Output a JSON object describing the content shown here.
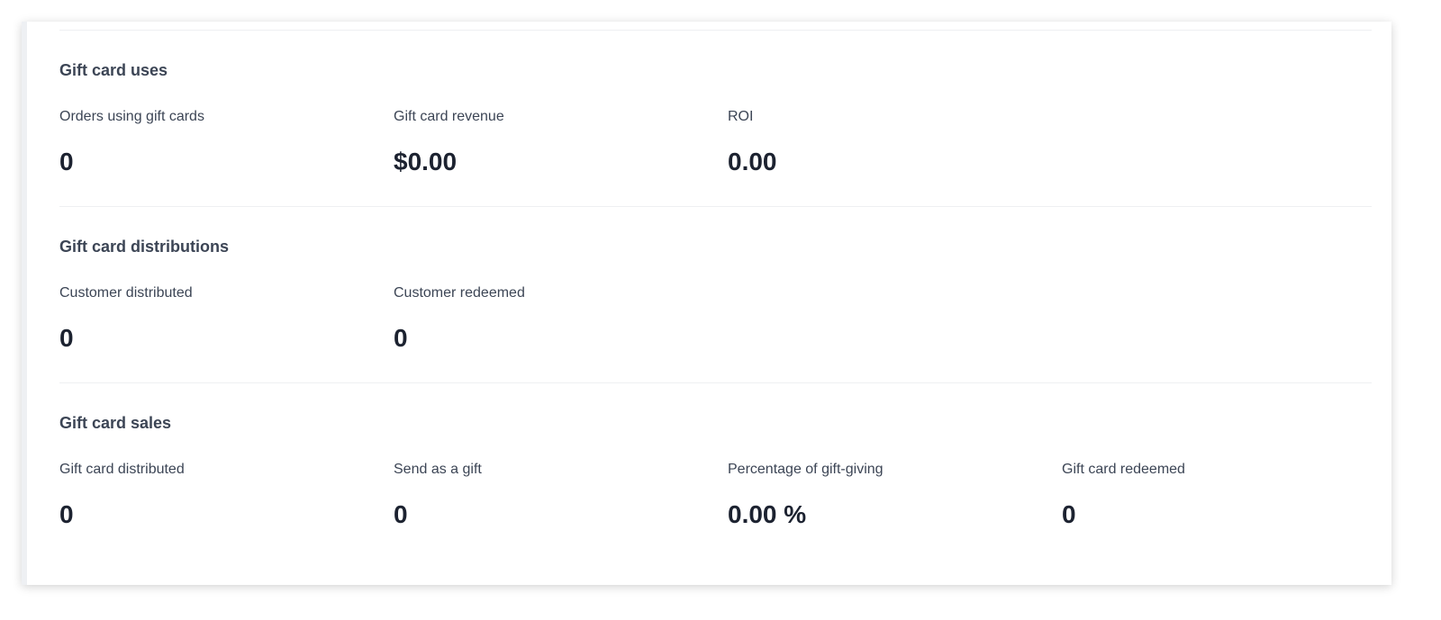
{
  "sections": [
    {
      "title": "Gift card uses",
      "metrics": [
        {
          "label": "Orders using gift cards",
          "value": "0"
        },
        {
          "label": "Gift card revenue",
          "value": "$0.00"
        },
        {
          "label": "ROI",
          "value": "0.00"
        }
      ]
    },
    {
      "title": "Gift card distributions",
      "metrics": [
        {
          "label": "Customer distributed",
          "value": "0"
        },
        {
          "label": "Customer redeemed",
          "value": "0"
        }
      ]
    },
    {
      "title": "Gift card sales",
      "metrics": [
        {
          "label": "Gift card distributed",
          "value": "0"
        },
        {
          "label": "Send as a gift",
          "value": "0"
        },
        {
          "label": "Percentage of gift-giving",
          "value": "0.00 %"
        },
        {
          "label": "Gift card redeemed",
          "value": "0"
        }
      ]
    }
  ]
}
